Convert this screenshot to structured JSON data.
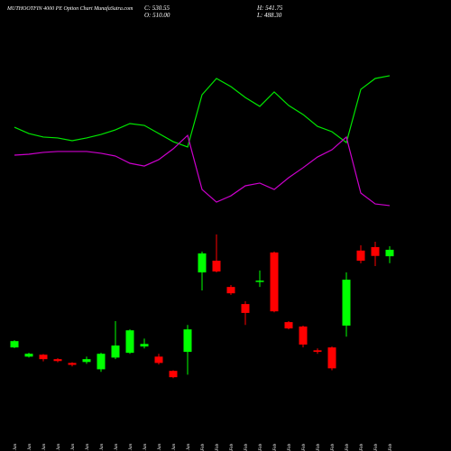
{
  "chart_data": [
    {
      "type": "candlestick",
      "title": "MUTHOOTFIN 4000 PE Option  Chart MunafaSutra.com",
      "stats": [
        "C: 530.55",
        "O: 510.00",
        "H: 541.75",
        "L: 488.30"
      ],
      "categories": [
        "12 Jan",
        "13 Jan",
        "14 Jan",
        "16 Jan",
        "19 Jan",
        "20 Jan",
        "21 Jan",
        "22 Jan",
        "23 Jan",
        "27 Jan",
        "28 Jan",
        "29 Jan",
        "30 Jan",
        "01 Feb",
        "02 Feb",
        "03 Feb",
        "04 Feb",
        "05 Feb",
        "06 Feb",
        "09 Feb",
        "10 Feb",
        "11 Feb",
        "12 Feb",
        "13 Feb",
        "16 Feb",
        "17 Feb",
        "18 Feb"
      ],
      "open": [
        222,
        193,
        199,
        185,
        173,
        176,
        153,
        190,
        205,
        225,
        193,
        148,
        208,
        459,
        496,
        413,
        359,
        430,
        522,
        302,
        288,
        213,
        222,
        291,
        528,
        539,
        510
      ],
      "high": [
        245,
        205,
        201,
        188,
        175,
        193,
        205,
        305,
        279,
        250,
        202,
        150,
        293,
        525,
        579,
        419,
        368,
        465,
        525,
        305,
        291,
        219,
        225,
        459,
        545,
        556,
        541.75
      ],
      "low": [
        220,
        190,
        178,
        175,
        162,
        170,
        145,
        185,
        202,
        219,
        168,
        125,
        136,
        402,
        459,
        388,
        293,
        413,
        333,
        279,
        222,
        202,
        150,
        256,
        488,
        479,
        488.3
      ],
      "close": [
        242,
        202,
        185,
        179,
        167,
        185,
        202,
        228,
        276,
        233,
        173,
        128,
        279,
        519,
        462,
        393,
        331,
        433,
        336,
        282,
        231,
        208,
        156,
        436,
        496,
        511,
        530.55
      ],
      "up_color": "#00ff00",
      "down_color": "#ff0000",
      "ylim": [
        100,
        610
      ]
    },
    {
      "type": "line",
      "series": [
        {
          "color": "#00e600",
          "values": [
            58.2,
            54.1,
            51.8,
            51.2,
            49.4,
            51.2,
            53.5,
            56.5,
            60.6,
            59.4,
            54.1,
            48.8,
            45.3,
            79.4,
            90,
            84.7,
            77.6,
            71.8,
            81.2,
            72.4,
            66.5,
            58.8,
            55.3,
            48.2,
            82.9,
            90,
            91.8
          ]
        },
        {
          "color": "#cc00cc",
          "values": [
            40,
            40.6,
            41.8,
            42.4,
            42.4,
            42.4,
            41.2,
            39.4,
            34.7,
            32.9,
            37.1,
            44.1,
            52.9,
            17.6,
            9.4,
            13.5,
            20,
            21.8,
            17.6,
            25.3,
            31.8,
            38.8,
            43.5,
            51.8,
            15.3,
            8.2,
            7.1
          ]
        }
      ],
      "ylim": [
        0,
        100
      ]
    }
  ]
}
